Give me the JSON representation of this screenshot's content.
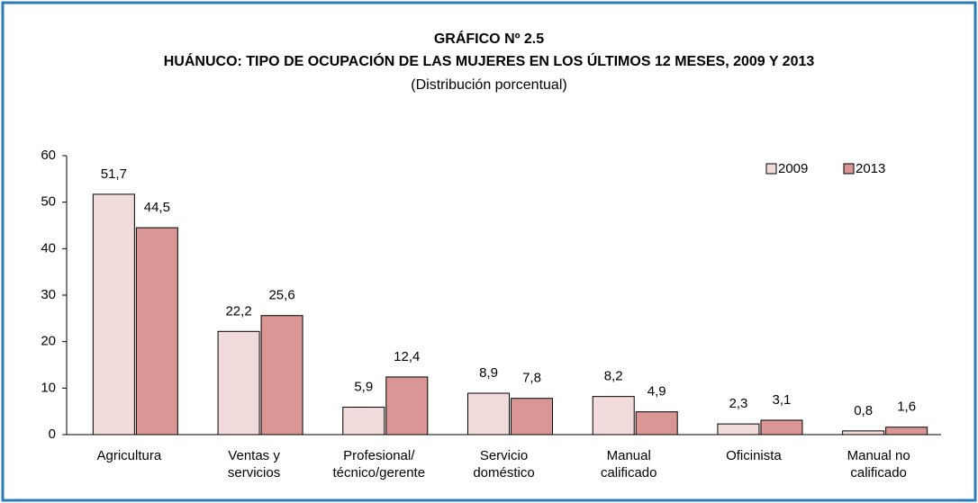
{
  "chart_data": {
    "type": "bar",
    "title": "GRÁFICO Nº 2.5",
    "subtitle": "HUÁNUCO: TIPO DE OCUPACIÓN DE LAS MUJERES EN LOS ÚLTIMOS 12 MESES, 2009 Y 2013",
    "note": "(Distribución porcentual)",
    "categories": [
      "Agricultura",
      "Ventas y\nservicios",
      "Profesional/\ntécnico/gerente",
      "Servicio\ndoméstico",
      "Manual\ncalificado",
      "Oficinista",
      "Manual no\ncalificado"
    ],
    "series": [
      {
        "name": "2009",
        "color": "#f2dcdb",
        "values": [
          51.7,
          22.2,
          5.9,
          8.9,
          8.2,
          2.3,
          0.8
        ],
        "value_labels": [
          "51,7",
          "22,2",
          "5,9",
          "8,9",
          "8,2",
          "2,3",
          "0,8"
        ]
      },
      {
        "name": "2013",
        "color": "#d99694",
        "values": [
          44.5,
          25.6,
          12.4,
          7.8,
          4.9,
          3.1,
          1.6
        ],
        "value_labels": [
          "44,5",
          "25,6",
          "12,4",
          "7,8",
          "4,9",
          "3,1",
          "1,6"
        ]
      }
    ],
    "ylim": [
      0,
      60
    ],
    "yticks": [
      0,
      10,
      20,
      30,
      40,
      50,
      60
    ],
    "grid": false,
    "legend": "upper right"
  }
}
